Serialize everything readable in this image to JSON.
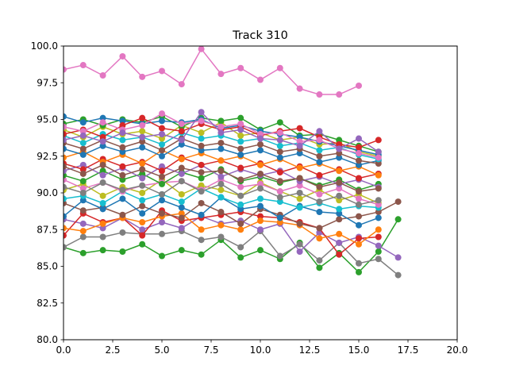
{
  "chart_data": {
    "type": "line",
    "title": "Track 310",
    "xlabel": "",
    "ylabel": "",
    "xlim": [
      0,
      20
    ],
    "ylim": [
      80,
      100
    ],
    "xticks": [
      "0.0",
      "2.5",
      "5.0",
      "7.5",
      "10.0",
      "12.5",
      "15.0",
      "17.5",
      "20.0"
    ],
    "yticks": [
      "80.0",
      "82.5",
      "85.0",
      "87.5",
      "90.0",
      "92.5",
      "95.0",
      "97.5",
      "100.0"
    ],
    "grid": false,
    "legend": "none",
    "palette": [
      "#1f77b4",
      "#ff7f0e",
      "#2ca02c",
      "#d62728",
      "#9467bd",
      "#8c564b",
      "#e377c2",
      "#7f7f7f",
      "#bcbd22",
      "#17becf"
    ],
    "series": [
      {
        "color": "#e377c2",
        "x": [
          0,
          1,
          2,
          3,
          4,
          5,
          6,
          7,
          8,
          9,
          10,
          11,
          12,
          13,
          14,
          15
        ],
        "y": [
          98.4,
          98.7,
          98.0,
          99.3,
          97.9,
          98.3,
          97.4,
          99.8,
          98.1,
          98.5,
          97.7,
          98.5,
          97.1,
          96.7,
          96.7,
          97.3
        ]
      },
      {
        "color": "#2ca02c",
        "x": [
          0,
          1,
          2,
          3,
          4,
          5,
          6,
          7,
          8,
          9,
          10,
          11,
          12,
          13,
          14,
          15,
          16,
          17
        ],
        "y": [
          86.3,
          85.9,
          86.1,
          86.0,
          86.5,
          85.7,
          86.1,
          85.8,
          86.8,
          85.6,
          86.1,
          85.5,
          86.6,
          84.9,
          85.9,
          84.6,
          86.0,
          88.2
        ]
      },
      {
        "color": "#7f7f7f",
        "x": [
          0,
          1,
          2,
          3,
          4,
          5,
          6,
          7,
          8,
          9,
          10,
          11,
          12,
          13,
          14,
          15,
          16,
          17
        ],
        "y": [
          86.3,
          87.0,
          87.0,
          87.3,
          87.2,
          87.2,
          87.4,
          86.8,
          87.0,
          86.3,
          87.4,
          85.7,
          86.5,
          85.4,
          86.6,
          85.2,
          85.5,
          84.4
        ]
      },
      {
        "color": "#9467bd",
        "x": [
          0,
          1,
          2,
          3,
          4,
          5,
          6,
          7,
          8,
          9,
          10,
          11,
          12,
          13,
          14,
          15,
          16,
          17
        ],
        "y": [
          88.2,
          87.9,
          87.6,
          88.3,
          87.5,
          88.0,
          87.6,
          88.4,
          87.9,
          88.1,
          87.5,
          87.9,
          86.0,
          87.3,
          86.6,
          87.0,
          86.4,
          85.6
        ]
      },
      {
        "color": "#d62728",
        "x": [
          0,
          1,
          2,
          3,
          4,
          5,
          6,
          7,
          8,
          9,
          10,
          11,
          12,
          13,
          14,
          15,
          16
        ],
        "y": [
          87.1,
          88.6,
          88.0,
          88.3,
          87.1,
          88.8,
          88.1,
          88.3,
          88.5,
          88.7,
          88.4,
          88.3,
          88.0,
          87.6,
          85.8,
          86.9,
          87.0
        ]
      },
      {
        "color": "#ff7f0e",
        "x": [
          0,
          1,
          2,
          3,
          4,
          5,
          6,
          7,
          8,
          9,
          10,
          11,
          12,
          13,
          14,
          15,
          16
        ],
        "y": [
          87.6,
          87.4,
          87.9,
          88.3,
          88.0,
          88.4,
          88.6,
          87.5,
          87.8,
          87.5,
          88.1,
          88.0,
          87.8,
          86.9,
          87.2,
          86.5,
          87.5
        ]
      },
      {
        "color": "#8c564b",
        "x": [
          0,
          1,
          2,
          3,
          4,
          5,
          6,
          7,
          8,
          9,
          10,
          11,
          12,
          13,
          14,
          15,
          16,
          17
        ],
        "y": [
          89.3,
          88.8,
          89.0,
          88.5,
          89.1,
          88.6,
          88.3,
          89.3,
          88.7,
          87.9,
          88.9,
          88.5,
          87.9,
          87.6,
          88.2,
          88.4,
          88.7,
          89.4
        ]
      },
      {
        "color": "#1f77b4",
        "x": [
          0,
          1,
          2,
          3,
          4,
          5,
          6,
          7,
          8,
          9,
          10,
          11,
          12,
          13,
          14,
          15,
          16
        ],
        "y": [
          88.4,
          89.5,
          88.9,
          89.6,
          88.6,
          89.5,
          89.0,
          88.5,
          89.7,
          88.9,
          89.1,
          88.3,
          89.1,
          88.7,
          88.6,
          87.8,
          88.3
        ]
      },
      {
        "color": "#17becf",
        "x": [
          0,
          1,
          2,
          3,
          4,
          5,
          6,
          7,
          8,
          9,
          10,
          11,
          12,
          13,
          14,
          15,
          16
        ],
        "y": [
          89.6,
          89.8,
          89.3,
          90.1,
          89.5,
          89.9,
          89.4,
          90.3,
          89.7,
          89.2,
          89.6,
          89.4,
          89.0,
          89.3,
          88.9,
          89.1,
          89.0
        ]
      },
      {
        "color": "#bcbd22",
        "x": [
          0,
          1,
          2,
          3,
          4,
          5,
          6,
          7,
          8,
          9,
          10,
          11,
          12,
          13,
          14,
          15,
          16
        ],
        "y": [
          90.2,
          90.6,
          89.8,
          90.4,
          90.0,
          90.9,
          89.9,
          90.5,
          90.2,
          89.8,
          90.7,
          90.1,
          89.6,
          90.2,
          89.5,
          89.9,
          89.3
        ]
      },
      {
        "color": "#e377c2",
        "x": [
          0,
          1,
          2,
          3,
          4,
          5,
          6,
          7,
          8,
          9,
          10,
          11,
          12,
          13,
          14,
          15,
          16
        ],
        "y": [
          90.9,
          90.3,
          90.7,
          90.1,
          90.5,
          90.7,
          90.8,
          90.2,
          90.9,
          90.4,
          90.6,
          90.1,
          90.5,
          89.9,
          90.3,
          89.6,
          89.2
        ]
      },
      {
        "color": "#2ca02c",
        "x": [
          0,
          1,
          2,
          3,
          4,
          5,
          6,
          7,
          8,
          9,
          10,
          11,
          12,
          13,
          14,
          15,
          16
        ],
        "y": [
          91.2,
          90.8,
          91.5,
          90.9,
          91.3,
          90.6,
          91.4,
          91.0,
          91.6,
          90.8,
          91.1,
          90.7,
          91.0,
          90.5,
          90.9,
          90.2,
          90.6
        ]
      },
      {
        "color": "#9467bd",
        "x": [
          0,
          1,
          2,
          3,
          4,
          5,
          6,
          7,
          8,
          9,
          10,
          11,
          12,
          13,
          14,
          15,
          16
        ],
        "y": [
          91.5,
          91.9,
          91.2,
          91.7,
          91.0,
          91.8,
          91.3,
          91.9,
          91.1,
          91.6,
          91.2,
          91.5,
          90.8,
          91.1,
          90.6,
          90.9,
          90.4
        ]
      },
      {
        "color": "#d62728",
        "x": [
          0,
          1,
          2,
          3,
          4,
          5,
          6,
          7,
          8,
          9,
          10,
          11,
          12,
          13,
          14,
          15,
          16
        ],
        "y": [
          92.0,
          91.6,
          92.3,
          91.8,
          92.1,
          91.5,
          92.4,
          91.9,
          92.2,
          91.7,
          92.0,
          91.4,
          91.8,
          91.2,
          91.6,
          91.0,
          91.3
        ]
      },
      {
        "color": "#ff7f0e",
        "x": [
          0,
          1,
          2,
          3,
          4,
          5,
          6,
          7,
          8,
          9,
          10,
          11,
          12,
          13,
          14,
          15,
          16
        ],
        "y": [
          92.4,
          92.8,
          92.1,
          92.6,
          92.0,
          92.9,
          92.3,
          92.7,
          92.2,
          92.5,
          91.9,
          92.3,
          91.7,
          92.0,
          91.5,
          91.8,
          91.2
        ]
      },
      {
        "color": "#1f77b4",
        "x": [
          0,
          1,
          2,
          3,
          4,
          5,
          6,
          7,
          8,
          9,
          10,
          11,
          12,
          13,
          14,
          15,
          16
        ],
        "y": [
          93.0,
          92.6,
          93.2,
          92.8,
          93.1,
          92.5,
          93.3,
          92.9,
          93.0,
          92.6,
          92.9,
          92.4,
          92.7,
          92.1,
          92.4,
          91.9,
          92.2
        ]
      },
      {
        "color": "#8c564b",
        "x": [
          0,
          1,
          2,
          3,
          4,
          5,
          6,
          7,
          8,
          9,
          10,
          11,
          12,
          13,
          14,
          15,
          16
        ],
        "y": [
          93.4,
          93.0,
          93.6,
          93.1,
          93.5,
          92.9,
          93.7,
          93.2,
          93.4,
          93.0,
          93.3,
          92.8,
          93.0,
          92.5,
          92.7,
          92.2,
          92.0
        ]
      },
      {
        "color": "#17becf",
        "x": [
          0,
          1,
          2,
          3,
          4,
          5,
          6,
          7,
          8,
          9,
          10,
          11,
          12,
          13,
          14,
          15,
          16
        ],
        "y": [
          93.9,
          93.4,
          94.0,
          93.6,
          93.8,
          93.3,
          94.1,
          93.7,
          93.9,
          93.5,
          93.7,
          93.2,
          93.4,
          92.9,
          93.1,
          92.6,
          92.3
        ]
      },
      {
        "color": "#bcbd22",
        "x": [
          0,
          1,
          2,
          3,
          4,
          5,
          6,
          7,
          8,
          9,
          10,
          11,
          12,
          13,
          14,
          15,
          16
        ],
        "y": [
          94.3,
          93.8,
          94.5,
          94.0,
          94.2,
          93.7,
          94.6,
          94.1,
          94.8,
          93.9,
          94.1,
          93.6,
          93.8,
          93.3,
          93.4,
          92.8,
          92.5
        ]
      },
      {
        "color": "#2ca02c",
        "x": [
          0,
          1,
          2,
          3,
          4,
          5,
          6,
          7,
          8,
          9,
          10,
          11,
          12,
          13,
          14,
          15,
          16
        ],
        "y": [
          94.7,
          95.0,
          94.6,
          95.0,
          94.8,
          95.2,
          94.5,
          95.1,
          94.9,
          95.1,
          94.3,
          94.8,
          93.9,
          94.0,
          93.6,
          93.2,
          92.8
        ]
      },
      {
        "color": "#1f77b4",
        "x": [
          0,
          1,
          2,
          3,
          4,
          5,
          6,
          7,
          8,
          9,
          10,
          11,
          12,
          13,
          14,
          15,
          16
        ],
        "y": [
          95.2,
          94.8,
          95.1,
          94.9,
          94.7,
          94.9,
          94.8,
          95.0,
          94.4,
          94.6,
          94.2,
          94.0,
          93.8,
          93.5,
          93.2,
          92.9,
          92.6
        ]
      },
      {
        "color": "#d62728",
        "x": [
          0,
          1,
          2,
          3,
          4,
          5,
          6,
          7,
          8,
          9,
          10,
          11,
          12,
          13,
          14,
          15,
          16
        ],
        "y": [
          94.0,
          94.3,
          93.8,
          94.6,
          95.1,
          94.4,
          94.2,
          94.7,
          94.3,
          94.5,
          93.9,
          94.2,
          94.4,
          93.8,
          93.3,
          93.1,
          93.6
        ]
      },
      {
        "color": "#e377c2",
        "x": [
          0,
          1,
          2,
          3,
          4,
          5,
          6,
          7,
          8,
          9,
          10,
          11,
          12,
          13,
          14,
          15,
          16
        ],
        "y": [
          94.5,
          94.2,
          94.8,
          94.3,
          94.6,
          95.4,
          94.7,
          94.9,
          94.5,
          94.7,
          94.0,
          94.1,
          93.5,
          93.6,
          93.0,
          92.7,
          92.4
        ]
      },
      {
        "color": "#9467bd",
        "x": [
          0,
          1,
          2,
          3,
          4,
          5,
          6,
          7,
          8,
          9,
          10,
          11,
          12,
          13,
          14,
          15,
          16
        ],
        "y": [
          93.6,
          93.9,
          93.5,
          94.1,
          93.8,
          94.0,
          93.6,
          95.5,
          94.1,
          94.3,
          93.7,
          93.6,
          93.2,
          94.2,
          93.0,
          93.7,
          92.8
        ]
      },
      {
        "color": "#7f7f7f",
        "x": [
          0,
          1,
          2,
          3,
          4,
          5,
          6,
          7,
          8,
          9,
          10,
          11,
          12,
          13,
          14,
          15,
          16
        ],
        "y": [
          90.4,
          90.0,
          90.7,
          90.2,
          90.5,
          89.9,
          90.8,
          90.1,
          90.6,
          89.8,
          90.3,
          89.7,
          90.0,
          89.4,
          89.8,
          89.2,
          89.5
        ]
      },
      {
        "color": "#8c564b",
        "x": [
          0,
          1,
          2,
          3,
          4,
          5,
          6,
          7,
          8,
          9,
          10,
          11,
          12,
          13,
          14,
          15,
          16
        ],
        "y": [
          91.8,
          91.3,
          91.9,
          91.2,
          91.6,
          91.1,
          91.7,
          91.4,
          91.5,
          90.9,
          91.3,
          90.8,
          91.0,
          90.4,
          90.7,
          90.1,
          90.3
        ]
      }
    ]
  }
}
